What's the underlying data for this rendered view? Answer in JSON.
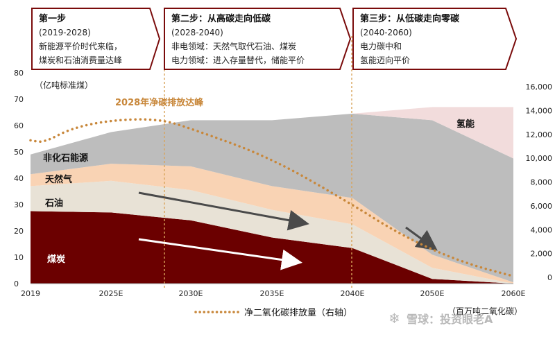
{
  "stages": [
    {
      "title": "第一步",
      "years": "(2019-2028)",
      "lines": [
        "新能源平价时代来临，",
        "煤炭和石油消费量达峰"
      ]
    },
    {
      "title": "第二步：从高碳走向低碳",
      "years": "(2028-2040)",
      "lines": [
        "非电领域：天然气取代石油、煤炭",
        "电力领域：进入存量替代，储能平价"
      ]
    },
    {
      "title": "第三步：从低碳走向零碳",
      "years": "(2040-2060)",
      "lines": [
        "电力碳中和",
        "氢能迈向平价"
      ]
    }
  ],
  "chart_data": {
    "type": "area",
    "x": [
      "2019",
      "2025E",
      "2030E",
      "2035E",
      "2040E",
      "2050E",
      "2060E"
    ],
    "left_axis": {
      "unit": "（亿吨标准煤）",
      "ticks": [
        0,
        10,
        20,
        30,
        40,
        50,
        60,
        70,
        80
      ],
      "ylim": [
        0,
        80
      ]
    },
    "right_axis": {
      "unit": "（百万吨二氧化碳）",
      "ticks": [
        "0",
        "2,000",
        "4,000",
        "6,000",
        "8,000",
        "10,000",
        "12,000",
        "14,000",
        "16,000"
      ],
      "ylim": [
        0,
        16000
      ]
    },
    "series": [
      {
        "name": "煤炭",
        "color": "#6b0000",
        "values": [
          27.5,
          27,
          24,
          17.5,
          13.5,
          1.8,
          0
        ]
      },
      {
        "name": "石油",
        "color": "#e8e2d6",
        "values": [
          9.5,
          12,
          11.5,
          10.5,
          9,
          4.2,
          0
        ]
      },
      {
        "name": "天然气",
        "color": "#f9d3b4",
        "values": [
          4.5,
          6.5,
          9,
          9,
          10,
          5,
          0.5
        ]
      },
      {
        "name": "非化石能源",
        "color": "#bdbdbd",
        "values": [
          7.5,
          12,
          17.5,
          25,
          32,
          51,
          47
        ]
      },
      {
        "name": "氢能",
        "color": "#f2dcdc",
        "values": [
          0,
          0,
          0,
          0,
          0,
          5,
          19.5
        ]
      }
    ],
    "emissions": {
      "name": "净二氧化碳排放量（右轴）",
      "color": "#c8873a",
      "x": [
        2019,
        2020,
        2022,
        2025,
        2028,
        2030,
        2035,
        2040,
        2045,
        2050,
        2055,
        2060
      ],
      "values": [
        11500,
        11300,
        12500,
        13200,
        13300,
        12500,
        10000,
        6100,
        4000,
        2300,
        1000,
        100
      ]
    },
    "annotations": [
      {
        "text": "2028年净碳排放达峰"
      }
    ],
    "legend": "bottom"
  },
  "watermark": "雪球：投资眼老A"
}
